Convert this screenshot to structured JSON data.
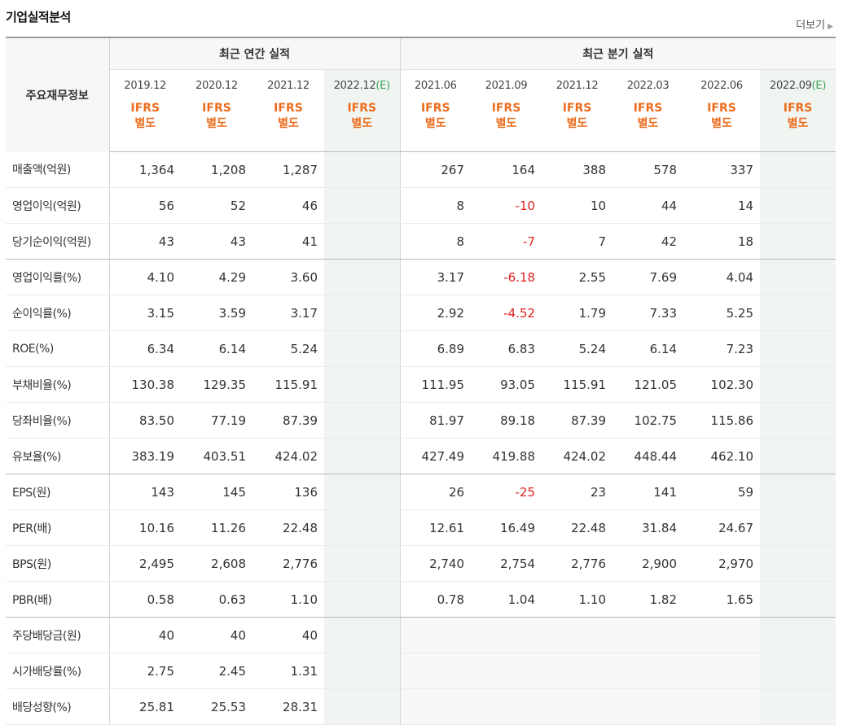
{
  "title": "기업실적분석",
  "more_label": "더보기",
  "corner_label": "주요재무정보",
  "groups": {
    "annual": "최근 연간 실적",
    "quarter": "최근 분기 실적"
  },
  "periods": [
    {
      "label": "2019.12",
      "est": "",
      "type": "annual"
    },
    {
      "label": "2020.12",
      "est": "",
      "type": "annual"
    },
    {
      "label": "2021.12",
      "est": "",
      "type": "annual"
    },
    {
      "label": "2022.12",
      "est": "(E)",
      "type": "annual"
    },
    {
      "label": "2021.06",
      "est": "",
      "type": "quarter"
    },
    {
      "label": "2021.09",
      "est": "",
      "type": "quarter"
    },
    {
      "label": "2021.12",
      "est": "",
      "type": "quarter"
    },
    {
      "label": "2022.03",
      "est": "",
      "type": "quarter"
    },
    {
      "label": "2022.06",
      "est": "",
      "type": "quarter"
    },
    {
      "label": "2022.09",
      "est": "(E)",
      "type": "quarter"
    }
  ],
  "ifrs": {
    "line1": "IFRS",
    "line2": "별도"
  },
  "rows": [
    {
      "label": "매출액(억원)",
      "values": [
        "1,364",
        "1,208",
        "1,287",
        "",
        "267",
        "164",
        "388",
        "578",
        "337",
        ""
      ],
      "group_end": false
    },
    {
      "label": "영업이익(억원)",
      "values": [
        "56",
        "52",
        "46",
        "",
        "8",
        "-10",
        "10",
        "44",
        "14",
        ""
      ],
      "group_end": false
    },
    {
      "label": "당기순이익(억원)",
      "values": [
        "43",
        "43",
        "41",
        "",
        "8",
        "-7",
        "7",
        "42",
        "18",
        ""
      ],
      "group_end": true
    },
    {
      "label": "영업이익률(%)",
      "values": [
        "4.10",
        "4.29",
        "3.60",
        "",
        "3.17",
        "-6.18",
        "2.55",
        "7.69",
        "4.04",
        ""
      ],
      "group_end": false
    },
    {
      "label": "순이익률(%)",
      "values": [
        "3.15",
        "3.59",
        "3.17",
        "",
        "2.92",
        "-4.52",
        "1.79",
        "7.33",
        "5.25",
        ""
      ],
      "group_end": false
    },
    {
      "label": "ROE(%)",
      "values": [
        "6.34",
        "6.14",
        "5.24",
        "",
        "6.89",
        "6.83",
        "5.24",
        "6.14",
        "7.23",
        ""
      ],
      "group_end": false
    },
    {
      "label": "부채비율(%)",
      "values": [
        "130.38",
        "129.35",
        "115.91",
        "",
        "111.95",
        "93.05",
        "115.91",
        "121.05",
        "102.30",
        ""
      ],
      "group_end": false
    },
    {
      "label": "당좌비율(%)",
      "values": [
        "83.50",
        "77.19",
        "87.39",
        "",
        "81.97",
        "89.18",
        "87.39",
        "102.75",
        "115.86",
        ""
      ],
      "group_end": false
    },
    {
      "label": "유보율(%)",
      "values": [
        "383.19",
        "403.51",
        "424.02",
        "",
        "427.49",
        "419.88",
        "424.02",
        "448.44",
        "462.10",
        ""
      ],
      "group_end": true
    },
    {
      "label": "EPS(원)",
      "values": [
        "143",
        "145",
        "136",
        "",
        "26",
        "-25",
        "23",
        "141",
        "59",
        ""
      ],
      "group_end": false
    },
    {
      "label": "PER(배)",
      "values": [
        "10.16",
        "11.26",
        "22.48",
        "",
        "12.61",
        "16.49",
        "22.48",
        "31.84",
        "24.67",
        ""
      ],
      "group_end": false
    },
    {
      "label": "BPS(원)",
      "values": [
        "2,495",
        "2,608",
        "2,776",
        "",
        "2,740",
        "2,754",
        "2,776",
        "2,900",
        "2,970",
        ""
      ],
      "group_end": false
    },
    {
      "label": "PBR(배)",
      "values": [
        "0.58",
        "0.63",
        "1.10",
        "",
        "0.78",
        "1.04",
        "1.10",
        "1.82",
        "1.65",
        ""
      ],
      "group_end": true
    },
    {
      "label": "주당배당금(원)",
      "values": [
        "40",
        "40",
        "40",
        "",
        "",
        "",
        "",
        "",
        "",
        ""
      ],
      "group_end": false,
      "quarter_blank": true
    },
    {
      "label": "시가배당률(%)",
      "values": [
        "2.75",
        "2.45",
        "1.31",
        "",
        "",
        "",
        "",
        "",
        "",
        ""
      ],
      "group_end": false,
      "quarter_blank": true
    },
    {
      "label": "배당성향(%)",
      "values": [
        "25.81",
        "25.53",
        "28.31",
        "",
        "",
        "",
        "",
        "",
        "",
        ""
      ],
      "group_end": false,
      "quarter_blank": true
    }
  ]
}
